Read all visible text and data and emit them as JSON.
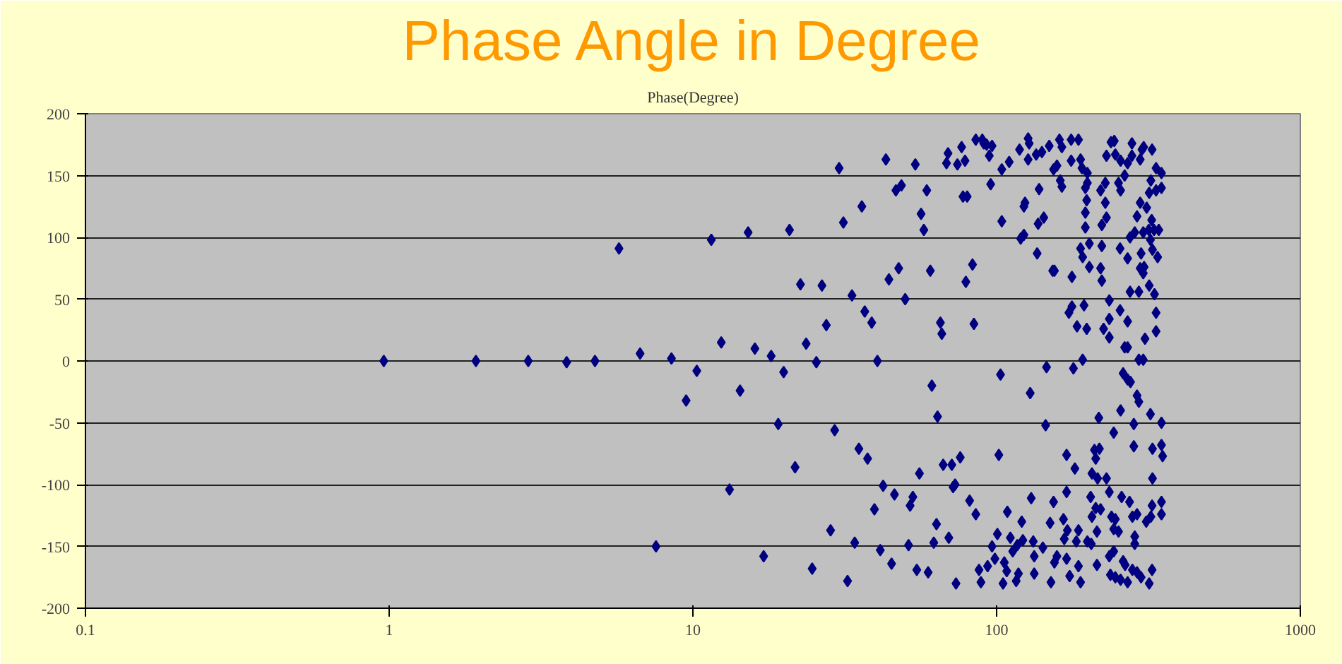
{
  "chart_data": {
    "type": "scatter",
    "title": "Phase Angle in Degree",
    "subtitle": "Phase(Degree)",
    "log": "x",
    "grid": "y",
    "marker": "diamond",
    "color": "#000080",
    "xlim": [
      0.1,
      1000
    ],
    "xticks": [
      0.1,
      1,
      10,
      100,
      1000
    ],
    "ylim": [
      -200,
      200
    ],
    "yticks": [
      -200,
      -150,
      -100,
      -50,
      0,
      50,
      100,
      150,
      200
    ],
    "x": [
      0.96,
      1.93,
      2.87,
      3.84,
      4.76,
      5.71,
      6.7,
      7.56,
      8.5,
      9.5,
      10.3,
      11.5,
      12.4,
      13.2,
      14.3,
      15.2,
      16.0,
      17.1,
      18.1,
      19.1,
      19.9,
      20.8,
      21.7,
      22.6,
      23.6,
      24.7,
      25.5,
      26.6,
      27.5,
      28.4,
      29.3,
      30.3,
      31.3,
      32.3,
      33.4,
      34.1,
      35.2,
      36.0,
      36.8,
      37.6,
      38.8,
      39.6,
      40.5,
      41.4,
      42.3,
      43.2,
      44.2,
      45.1,
      46.1,
      46.6,
      47.6,
      48.6,
      50.0,
      51.3,
      51.9,
      53.0,
      54.0,
      54.6,
      55.7,
      56.4,
      57.6,
      58.9,
      59.5,
      60.5,
      61.2,
      62.1,
      63.4,
      63.9,
      65.3,
      66.0,
      66.7,
      68.4,
      69.2,
      69.6,
      71.2,
      71.9,
      73.0,
      73.5,
      74.3,
      75.9,
      76.7,
      77.5,
      78.7,
      80.0,
      79.2,
      81.5,
      83.3,
      84.2,
      85.4,
      85.4,
      87.5,
      88.8,
      89.7,
      90.7,
      92.7,
      93.4,
      94.6,
      95.6,
      96.6,
      96.6,
      98.7,
      100.6,
      101.7,
      103,
      104,
      104,
      105,
      106,
      108,
      108.5,
      110,
      111,
      113,
      116,
      117,
      118,
      119,
      120,
      121,
      122,
      123,
      123,
      124,
      127,
      127,
      128,
      129,
      130,
      132,
      133,
      133,
      135,
      136,
      137,
      138,
      141,
      142,
      143,
      145,
      146,
      149,
      150,
      151,
      153,
      154,
      154,
      161,
      164,
      158,
      162,
      164,
      155,
      177,
      176,
      176,
      186,
      189,
      191,
      199,
      199,
      196,
      198,
      196,
      196,
      189,
      192,
      202,
      202,
      173,
      177,
      184,
      194,
      198,
      192,
      179,
      170,
      181,
      170,
      166,
      171,
      167,
      183,
      186,
      158,
      155,
      170,
      174,
      186,
      189,
      204,
      206,
      212,
      218,
      215,
      230,
      206,
      212,
      220,
      214,
      199,
      205,
      214,
      235,
      243,
      237,
      246,
      261,
      265,
      270,
      256,
      280,
      290,
      299,
      318,
      325,
      239,
      246,
      243,
      252,
      235,
      258,
      274,
      280,
      285,
      285,
      290,
      311,
      322,
      325,
      349,
      349,
      210,
      243,
      256,
      283,
      283,
      290,
      294,
      321,
      349,
      326,
      349,
      352,
      326,
      217,
      261,
      270,
      276,
      264,
      294,
      304,
      308,
      335,
      335,
      270,
      270,
      255,
      235,
      235,
      225,
      235,
      222,
      222,
      220,
      255,
      270,
      275,
      294,
      299,
      297,
      304,
      306,
      318,
      331,
      326,
      339,
      275,
      285,
      304,
      317,
      330,
      342,
      321,
      324,
      312,
      297,
      290,
      318,
      335,
      349,
      322,
      335,
      349,
      325,
      301,
      305,
      297,
      279,
      279,
      270,
      264,
      256,
      246,
      238,
      244,
      230,
      252,
      256,
      228,
      228,
      220,
      230,
      222
    ],
    "values": [
      0,
      0,
      0,
      -1,
      0,
      91,
      6,
      -150,
      2,
      -32,
      -8,
      98,
      15,
      -104,
      -24,
      104,
      10,
      -158,
      4,
      -51,
      -9,
      106,
      -86,
      62,
      14,
      -168,
      -1,
      61,
      29,
      -137,
      -56,
      156,
      112,
      -178,
      53,
      -147,
      -71,
      125,
      40,
      -79,
      31,
      -120,
      0,
      -153,
      -101,
      163,
      66,
      -164,
      -108,
      138,
      75,
      142,
      50,
      -149,
      -117,
      -110,
      159,
      -169,
      -91,
      119,
      106,
      138,
      -171,
      73,
      -20,
      -147,
      -132,
      -45,
      31,
      22,
      -84,
      160,
      168,
      -143,
      -84,
      -102,
      -100,
      -180,
      159,
      -78,
      173,
      133,
      162,
      133,
      64,
      -113,
      78,
      30,
      -124,
      179,
      -169,
      -179,
      179,
      176,
      175,
      -166,
      166,
      143,
      174,
      -150,
      -160,
      -140,
      -76,
      -11,
      113,
      155,
      -180,
      -163,
      -170,
      -122,
      161,
      -143,
      -154,
      -178,
      -149,
      -172,
      171,
      99,
      -130,
      -145,
      102,
      125,
      128,
      163,
      180,
      176,
      -26,
      -111,
      -146,
      -158,
      -172,
      167,
      87,
      111,
      139,
      169,
      -151,
      116,
      -52,
      -5,
      174,
      -131,
      -179,
      73,
      155,
      -114,
      179,
      173,
      158,
      146,
      141,
      73,
      68,
      162,
      179,
      179,
      163,
      156,
      152,
      144,
      140,
      130,
      120,
      108,
      91,
      84,
      95,
      76,
      39,
      44,
      28,
      45,
      26,
      1,
      -6,
      -76,
      -87,
      -106,
      -128,
      -137,
      -144,
      -146,
      -137,
      -158,
      -163,
      -160,
      -174,
      -166,
      -179,
      -110,
      -91,
      -79,
      -71,
      -95,
      -95,
      -126,
      -119,
      -120,
      -138,
      -146,
      -148,
      -165,
      -158,
      -154,
      -173,
      -175,
      -162,
      -165,
      -179,
      -177,
      -169,
      -171,
      -175,
      -180,
      -169,
      -126,
      -128,
      -136,
      -138,
      -106,
      -110,
      -114,
      -126,
      -142,
      -148,
      -124,
      -130,
      -126,
      -117,
      -114,
      -124,
      -72,
      -58,
      -40,
      -51,
      -69,
      -28,
      -33,
      -43,
      -50,
      -71,
      -68,
      -77,
      -95,
      -46,
      -10,
      -15,
      -17,
      11,
      1,
      1,
      18,
      24,
      39,
      11,
      32,
      41,
      49,
      34,
      26,
      19,
      93,
      65,
      75,
      91,
      83,
      56,
      56,
      87,
      75,
      71,
      76,
      61,
      54,
      90,
      84,
      100,
      104,
      104,
      106,
      106,
      106,
      98,
      114,
      124,
      128,
      117,
      136,
      138,
      140,
      146,
      156,
      152,
      171,
      171,
      173,
      163,
      176,
      166,
      160,
      150,
      162,
      167,
      177,
      178,
      166,
      144,
      138,
      144,
      128,
      138,
      116,
      110
    ]
  }
}
